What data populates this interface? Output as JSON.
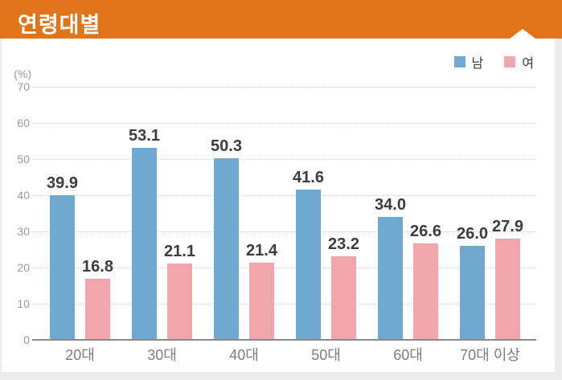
{
  "header": {
    "title": "연령대별",
    "background": "#E07418"
  },
  "legend": [
    {
      "label": "남",
      "color": "#6FA9D2"
    },
    {
      "label": "여",
      "color": "#F3A5AD"
    }
  ],
  "chart_data": {
    "type": "bar",
    "title": "연령대별",
    "unit_label": "(%)",
    "categories": [
      "20대",
      "30대",
      "40대",
      "50대",
      "60대",
      "70대 이상"
    ],
    "series": [
      {
        "name": "남",
        "color": "#6FA9D2",
        "values": [
          39.9,
          53.1,
          50.3,
          41.6,
          34.0,
          26.0
        ],
        "labels": [
          "39.9",
          "53.1",
          "50.3",
          "41.6",
          "34.0",
          "26.0"
        ]
      },
      {
        "name": "여",
        "color": "#F3A5AD",
        "values": [
          16.8,
          21.1,
          21.4,
          23.2,
          26.6,
          27.9
        ],
        "labels": [
          "16.8",
          "21.1",
          "21.4",
          "23.2",
          "26.6",
          "27.9"
        ]
      }
    ],
    "ylim": [
      0,
      70
    ],
    "yticks": [
      0,
      10,
      20,
      30,
      40,
      50,
      60,
      70
    ],
    "grid": "horizontal-dotted",
    "legend_position": "top-right"
  }
}
